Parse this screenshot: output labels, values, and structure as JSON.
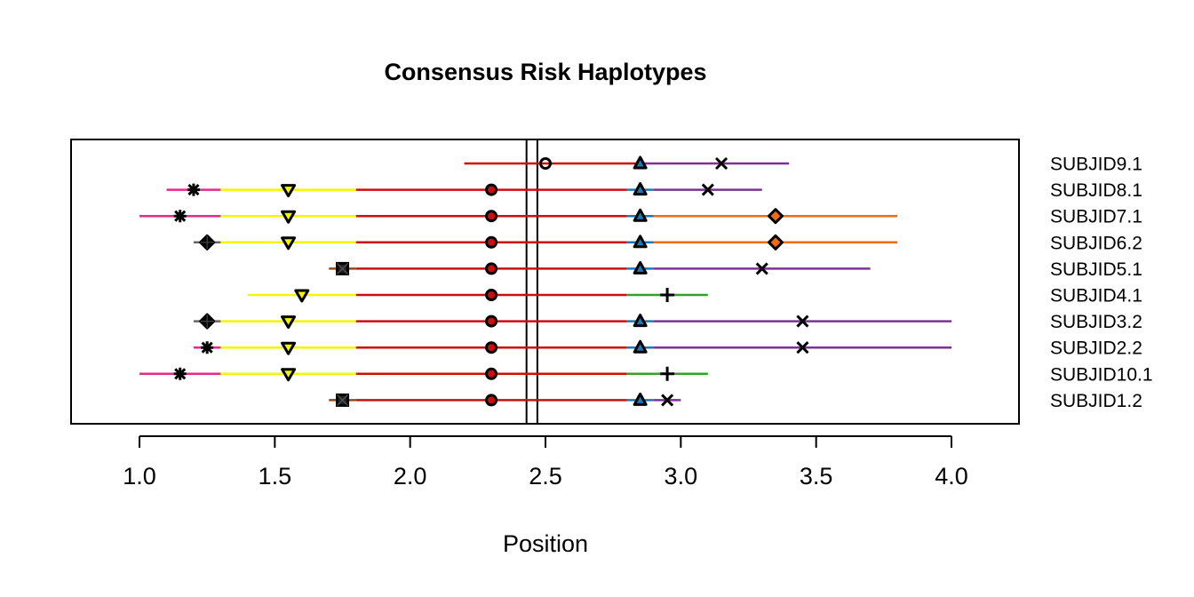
{
  "chart_data": {
    "type": "scatter",
    "title": "Consensus Risk Haplotypes",
    "xlabel": "Position",
    "ylabel": "",
    "xlim": [
      0.75,
      4.25
    ],
    "xticks": [
      "1.0",
      "1.5",
      "2.0",
      "2.5",
      "3.0",
      "3.5",
      "4.0"
    ],
    "xtick_values": [
      1.0,
      1.5,
      2.0,
      2.5,
      3.0,
      3.5,
      4.0
    ],
    "reference_lines": [
      2.43,
      2.47
    ],
    "colors": {
      "pink": "#e7298a",
      "yellow": "#f5f500",
      "red": "#cc0e0e",
      "blue": "#1f78b4",
      "purple": "#7b3294",
      "orange": "#f26a11",
      "green": "#33a02c",
      "brown": "#8c4a1a",
      "gray": "#666666"
    },
    "rows": [
      {
        "label": "SUBJID9.1",
        "segments": [
          {
            "from": 2.2,
            "to": 2.85,
            "color": "red"
          },
          {
            "from": 2.85,
            "to": 3.4,
            "color": "purple"
          }
        ],
        "markers": [
          {
            "x": 2.5,
            "shape": "circle"
          },
          {
            "x": 2.85,
            "shape": "triangle-up",
            "fill": "blue"
          },
          {
            "x": 3.15,
            "shape": "cross-x"
          }
        ]
      },
      {
        "label": "SUBJID8.1",
        "segments": [
          {
            "from": 1.1,
            "to": 1.3,
            "color": "pink"
          },
          {
            "from": 1.3,
            "to": 1.8,
            "color": "yellow"
          },
          {
            "from": 1.8,
            "to": 2.8,
            "color": "red"
          },
          {
            "from": 2.8,
            "to": 2.9,
            "color": "blue"
          },
          {
            "from": 2.9,
            "to": 3.3,
            "color": "purple"
          }
        ],
        "markers": [
          {
            "x": 1.2,
            "shape": "asterisk"
          },
          {
            "x": 1.55,
            "shape": "triangle-down",
            "fill": "yellow"
          },
          {
            "x": 2.3,
            "shape": "circle",
            "fill": "red"
          },
          {
            "x": 2.85,
            "shape": "triangle-up",
            "fill": "blue"
          },
          {
            "x": 3.1,
            "shape": "cross-x"
          }
        ]
      },
      {
        "label": "SUBJID7.1",
        "segments": [
          {
            "from": 1.0,
            "to": 1.3,
            "color": "pink"
          },
          {
            "from": 1.3,
            "to": 1.8,
            "color": "yellow"
          },
          {
            "from": 1.8,
            "to": 2.8,
            "color": "red"
          },
          {
            "from": 2.8,
            "to": 2.9,
            "color": "blue"
          },
          {
            "from": 2.9,
            "to": 3.8,
            "color": "orange"
          }
        ],
        "markers": [
          {
            "x": 1.15,
            "shape": "asterisk"
          },
          {
            "x": 1.55,
            "shape": "triangle-down",
            "fill": "yellow"
          },
          {
            "x": 2.3,
            "shape": "circle",
            "fill": "red"
          },
          {
            "x": 2.85,
            "shape": "triangle-up",
            "fill": "blue"
          },
          {
            "x": 3.35,
            "shape": "diamond",
            "fill": "orange"
          }
        ]
      },
      {
        "label": "SUBJID6.2",
        "segments": [
          {
            "from": 1.2,
            "to": 1.3,
            "color": "gray"
          },
          {
            "from": 1.3,
            "to": 1.8,
            "color": "yellow"
          },
          {
            "from": 1.8,
            "to": 2.8,
            "color": "red"
          },
          {
            "from": 2.8,
            "to": 2.9,
            "color": "blue"
          },
          {
            "from": 2.9,
            "to": 3.8,
            "color": "orange"
          }
        ],
        "markers": [
          {
            "x": 1.25,
            "shape": "diamond-plus"
          },
          {
            "x": 1.55,
            "shape": "triangle-down",
            "fill": "yellow"
          },
          {
            "x": 2.3,
            "shape": "circle",
            "fill": "red"
          },
          {
            "x": 2.85,
            "shape": "triangle-up",
            "fill": "blue"
          },
          {
            "x": 3.35,
            "shape": "diamond",
            "fill": "orange"
          }
        ]
      },
      {
        "label": "SUBJID5.1",
        "segments": [
          {
            "from": 1.7,
            "to": 1.8,
            "color": "brown"
          },
          {
            "from": 1.8,
            "to": 2.8,
            "color": "red"
          },
          {
            "from": 2.8,
            "to": 2.9,
            "color": "blue"
          },
          {
            "from": 2.9,
            "to": 3.7,
            "color": "purple"
          }
        ],
        "markers": [
          {
            "x": 1.75,
            "shape": "square-x"
          },
          {
            "x": 2.3,
            "shape": "circle",
            "fill": "red"
          },
          {
            "x": 2.85,
            "shape": "triangle-up",
            "fill": "blue"
          },
          {
            "x": 3.3,
            "shape": "cross-x"
          }
        ]
      },
      {
        "label": "SUBJID4.1",
        "segments": [
          {
            "from": 1.4,
            "to": 1.8,
            "color": "yellow"
          },
          {
            "from": 1.8,
            "to": 2.8,
            "color": "red"
          },
          {
            "from": 2.8,
            "to": 3.1,
            "color": "green"
          }
        ],
        "markers": [
          {
            "x": 1.6,
            "shape": "triangle-down",
            "fill": "yellow"
          },
          {
            "x": 2.3,
            "shape": "circle",
            "fill": "red"
          },
          {
            "x": 2.95,
            "shape": "plus"
          }
        ]
      },
      {
        "label": "SUBJID3.2",
        "segments": [
          {
            "from": 1.2,
            "to": 1.3,
            "color": "gray"
          },
          {
            "from": 1.3,
            "to": 1.8,
            "color": "yellow"
          },
          {
            "from": 1.8,
            "to": 2.8,
            "color": "red"
          },
          {
            "from": 2.8,
            "to": 2.9,
            "color": "blue"
          },
          {
            "from": 2.9,
            "to": 4.0,
            "color": "purple"
          }
        ],
        "markers": [
          {
            "x": 1.25,
            "shape": "diamond-plus"
          },
          {
            "x": 1.55,
            "shape": "triangle-down",
            "fill": "yellow"
          },
          {
            "x": 2.3,
            "shape": "circle",
            "fill": "red"
          },
          {
            "x": 2.85,
            "shape": "triangle-up",
            "fill": "blue"
          },
          {
            "x": 3.45,
            "shape": "cross-x"
          }
        ]
      },
      {
        "label": "SUBJID2.2",
        "segments": [
          {
            "from": 1.2,
            "to": 1.3,
            "color": "pink"
          },
          {
            "from": 1.3,
            "to": 1.8,
            "color": "yellow"
          },
          {
            "from": 1.8,
            "to": 2.8,
            "color": "red"
          },
          {
            "from": 2.8,
            "to": 2.9,
            "color": "blue"
          },
          {
            "from": 2.9,
            "to": 4.0,
            "color": "purple"
          }
        ],
        "markers": [
          {
            "x": 1.25,
            "shape": "asterisk"
          },
          {
            "x": 1.55,
            "shape": "triangle-down",
            "fill": "yellow"
          },
          {
            "x": 2.3,
            "shape": "circle",
            "fill": "red"
          },
          {
            "x": 2.85,
            "shape": "triangle-up",
            "fill": "blue"
          },
          {
            "x": 3.45,
            "shape": "cross-x"
          }
        ]
      },
      {
        "label": "SUBJID10.1",
        "segments": [
          {
            "from": 1.0,
            "to": 1.3,
            "color": "pink"
          },
          {
            "from": 1.3,
            "to": 1.8,
            "color": "yellow"
          },
          {
            "from": 1.8,
            "to": 2.8,
            "color": "red"
          },
          {
            "from": 2.8,
            "to": 3.1,
            "color": "green"
          }
        ],
        "markers": [
          {
            "x": 1.15,
            "shape": "asterisk"
          },
          {
            "x": 1.55,
            "shape": "triangle-down",
            "fill": "yellow"
          },
          {
            "x": 2.3,
            "shape": "circle",
            "fill": "red"
          },
          {
            "x": 2.95,
            "shape": "plus"
          }
        ]
      },
      {
        "label": "SUBJID1.2",
        "segments": [
          {
            "from": 1.7,
            "to": 1.8,
            "color": "brown"
          },
          {
            "from": 1.8,
            "to": 2.8,
            "color": "red"
          },
          {
            "from": 2.8,
            "to": 2.9,
            "color": "blue"
          },
          {
            "from": 2.9,
            "to": 3.0,
            "color": "purple"
          }
        ],
        "markers": [
          {
            "x": 1.75,
            "shape": "square-x"
          },
          {
            "x": 2.3,
            "shape": "circle",
            "fill": "red"
          },
          {
            "x": 2.85,
            "shape": "triangle-up",
            "fill": "blue"
          },
          {
            "x": 2.95,
            "shape": "cross-x"
          }
        ]
      }
    ]
  }
}
